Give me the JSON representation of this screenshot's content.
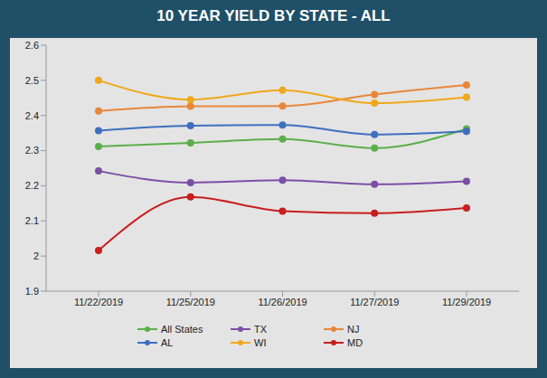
{
  "chart_data": {
    "type": "line",
    "title": "10 YEAR YIELD BY STATE - ALL",
    "categories": [
      "11/22/2019",
      "11/25/2019",
      "11/26/2019",
      "11/27/2019",
      "11/29/2019"
    ],
    "series": [
      {
        "name": "All States",
        "color": "#5BAF4A",
        "values": [
          2.312,
          2.322,
          2.333,
          2.307,
          2.362
        ]
      },
      {
        "name": "TX",
        "color": "#7B4FA6",
        "values": [
          2.242,
          2.209,
          2.216,
          2.204,
          2.213
        ]
      },
      {
        "name": "NJ",
        "color": "#E8873A",
        "values": [
          2.413,
          2.426,
          2.427,
          2.46,
          2.487
        ]
      },
      {
        "name": "AL",
        "color": "#3F6FC0",
        "values": [
          2.357,
          2.371,
          2.373,
          2.346,
          2.355
        ]
      },
      {
        "name": "WI",
        "color": "#F0A81A",
        "values": [
          2.5,
          2.445,
          2.472,
          2.435,
          2.452
        ]
      },
      {
        "name": "MD",
        "color": "#C81E1E",
        "values": [
          2.016,
          2.168,
          2.128,
          2.122,
          2.137
        ]
      }
    ],
    "ylim": [
      1.9,
      2.6
    ],
    "yticks": [
      1.9,
      2,
      2.1,
      2.2,
      2.3,
      2.4,
      2.5,
      2.6
    ],
    "grid": false,
    "legend": "bottom",
    "marker": "circle"
  }
}
